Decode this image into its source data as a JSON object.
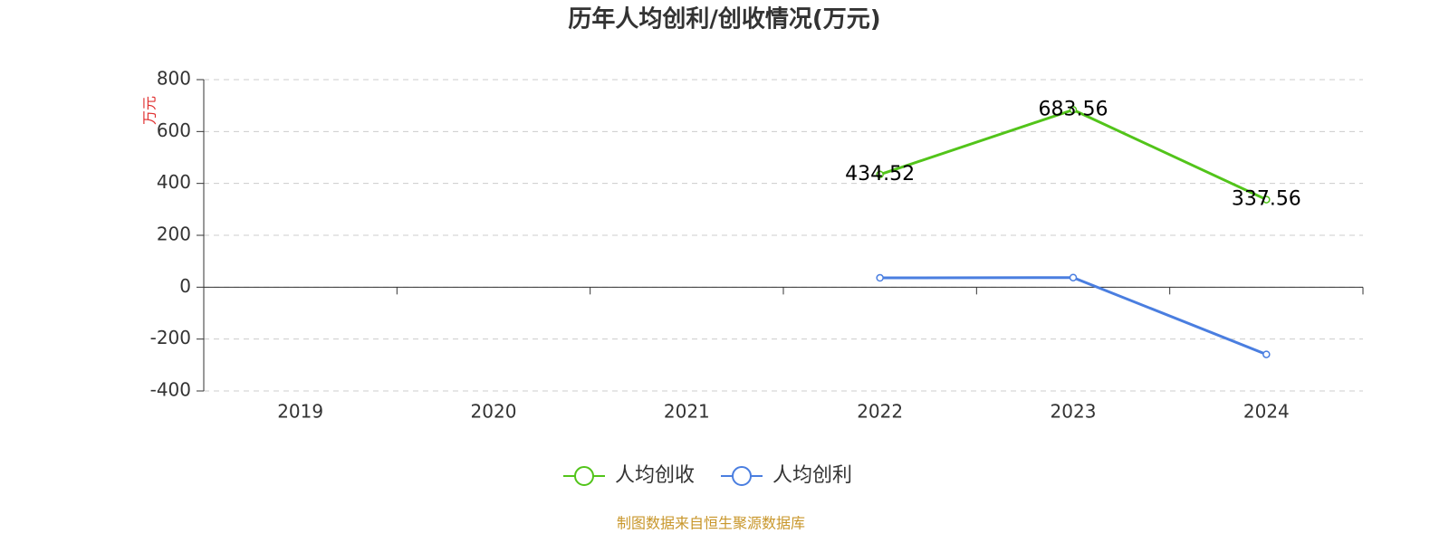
{
  "chart_data": {
    "type": "line",
    "title": "历年人均创利/创收情况(万元)",
    "y_axis_label": "万元",
    "source": "制图数据来自恒生聚源数据库",
    "categories": [
      "2019",
      "2020",
      "2021",
      "2022",
      "2023",
      "2024"
    ],
    "series": [
      {
        "name": "人均创收",
        "color": "#52c41a",
        "values": [
          null,
          null,
          null,
          434.52,
          683.56,
          337.56
        ]
      },
      {
        "name": "人均创利",
        "color": "#4a7ee0",
        "values": [
          null,
          null,
          null,
          36,
          37,
          -259
        ]
      }
    ],
    "ylim": [
      -400,
      800
    ],
    "yticks": [
      -400,
      -200,
      0,
      200,
      400,
      600,
      800
    ],
    "grid": true,
    "legend": "bottom"
  }
}
